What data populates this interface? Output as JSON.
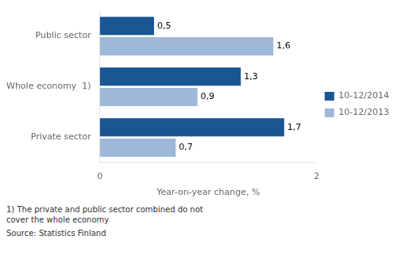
{
  "chart_data": {
    "type": "bar",
    "orientation": "horizontal",
    "categories": [
      "Public sector",
      "Whole economy  1)",
      "Private sector"
    ],
    "series": [
      {
        "name": "10-12/2014",
        "color": "#1A5694",
        "values": [
          0.5,
          1.3,
          1.7
        ],
        "value_labels": [
          "0,5",
          "1,3",
          "1,7"
        ]
      },
      {
        "name": "10-12/2013",
        "color": "#9DB8D9",
        "values": [
          1.6,
          0.9,
          0.7
        ],
        "value_labels": [
          "1,6",
          "0,9",
          "0,7"
        ]
      }
    ],
    "xlabel": "Year-on-year change, %",
    "xlim": [
      0,
      2.0
    ],
    "xticks": [
      0,
      2
    ],
    "data_labels": true,
    "grid": false,
    "legend": "right",
    "annotations": [
      "1)  The private and public sector combined do not\ncover the whole economy",
      "Source: Statistics Finland"
    ]
  }
}
